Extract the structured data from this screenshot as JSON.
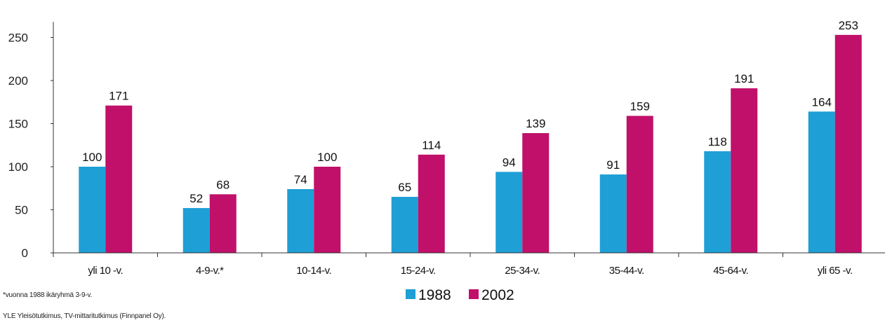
{
  "chart_data": {
    "type": "bar",
    "categories": [
      "yli 10 -v.",
      "4-9-v.*",
      "10-14-v.",
      "15-24-v.",
      "25-34-v.",
      "35-44-v.",
      "45-64-v.",
      "yli 65 -v."
    ],
    "series": [
      {
        "name": "1988",
        "color": "#1e9fd6",
        "values": [
          100,
          52,
          74,
          65,
          94,
          91,
          118,
          164
        ]
      },
      {
        "name": "2002",
        "color": "#c0106a",
        "values": [
          171,
          68,
          100,
          114,
          139,
          159,
          191,
          253
        ]
      }
    ],
    "yticks": [
      0,
      50,
      100,
      150,
      200,
      250
    ],
    "ylim": [
      0,
      260
    ],
    "legend_position": "bottom",
    "data_labels": true,
    "grid": false
  },
  "footnotes": {
    "note": "*vuonna 1988 ikäryhmä 3-9-v.",
    "source": "YLE Yleisötutkimus, TV-mittaritutkimus (Finnpanel Oy)."
  }
}
